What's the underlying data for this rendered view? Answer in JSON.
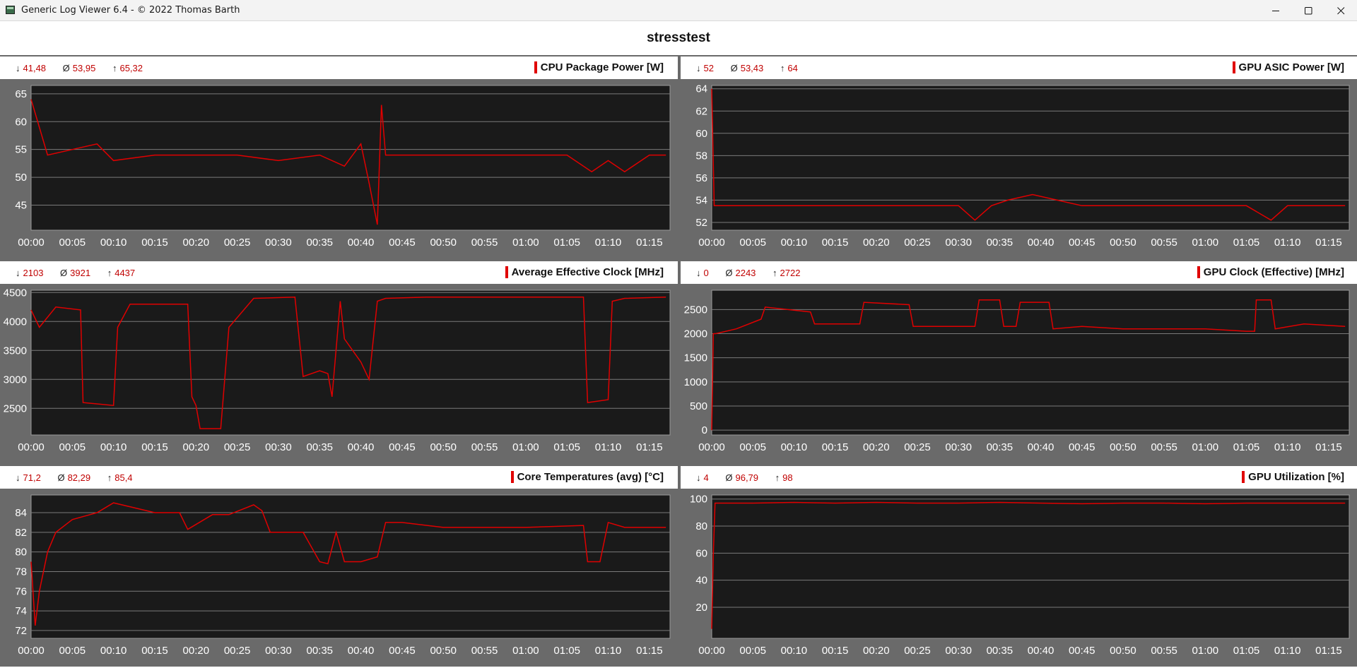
{
  "window": {
    "title": "Generic Log Viewer 6.4 - © 2022 Thomas Barth",
    "minimize_icon": "minimize-icon",
    "maximize_icon": "maximize-icon",
    "close_icon": "close-icon"
  },
  "header": {
    "title": "stresstest"
  },
  "colors": {
    "series": "#e00000",
    "plot_bg": "#1a1a1a",
    "frame": "#6a6a6a",
    "grid": "#7a7a7a",
    "stats": "#c00000"
  },
  "glyphs": {
    "min": "↓",
    "avg": "Ø",
    "max": "↑"
  },
  "panels": [
    {
      "title": "CPU Package Power [W]",
      "stats": {
        "min": "41,48",
        "avg": "53,95",
        "max": "65,32"
      }
    },
    {
      "title": "GPU ASIC Power [W]",
      "stats": {
        "min": "52",
        "avg": "53,43",
        "max": "64"
      }
    },
    {
      "title": "Average Effective Clock [MHz]",
      "stats": {
        "min": "2103",
        "avg": "3921",
        "max": "4437"
      }
    },
    {
      "title": "GPU Clock (Effective) [MHz]",
      "stats": {
        "min": "0",
        "avg": "2243",
        "max": "2722"
      }
    },
    {
      "title": "Core Temperatures (avg) [°C]",
      "stats": {
        "min": "71,2",
        "avg": "82,29",
        "max": "85,4"
      }
    },
    {
      "title": "GPU Utilization [%]",
      "stats": {
        "min": "4",
        "avg": "96,79",
        "max": "98"
      }
    }
  ],
  "chart_data": [
    {
      "type": "line",
      "title": "CPU Package Power [W]",
      "x_ticks": [
        "00:00",
        "00:05",
        "00:10",
        "00:15",
        "00:20",
        "00:25",
        "00:30",
        "00:35",
        "00:40",
        "00:45",
        "00:50",
        "00:55",
        "01:00",
        "01:05",
        "01:10",
        "01:15"
      ],
      "x_minutes": [
        0,
        2,
        5,
        8,
        10,
        15,
        20,
        25,
        30,
        35,
        38,
        40,
        41,
        42,
        42.5,
        43,
        45,
        50,
        55,
        60,
        65,
        68,
        70,
        72,
        75,
        77
      ],
      "ylim": [
        40.5,
        66.5
      ],
      "y_ticks": [
        45,
        50,
        55,
        60,
        65
      ],
      "series": [
        {
          "values": [
            64,
            54,
            55,
            56,
            53,
            54,
            54,
            54,
            53,
            54,
            52,
            56,
            49,
            41.5,
            63,
            54,
            54,
            54,
            54,
            54,
            54,
            51,
            53,
            51,
            54,
            54
          ]
        }
      ]
    },
    {
      "type": "line",
      "title": "GPU ASIC Power [W]",
      "x_ticks": [
        "00:00",
        "00:05",
        "00:10",
        "00:15",
        "00:20",
        "00:25",
        "00:30",
        "00:35",
        "00:40",
        "00:45",
        "00:50",
        "00:55",
        "01:00",
        "01:05",
        "01:10",
        "01:15"
      ],
      "x_minutes": [
        0,
        0.3,
        1,
        10,
        20,
        30,
        32,
        34,
        36,
        39,
        42,
        45,
        50,
        55,
        60,
        65,
        68,
        70,
        72,
        77
      ],
      "ylim": [
        51.3,
        64.3
      ],
      "y_ticks": [
        52,
        54,
        56,
        58,
        60,
        62,
        64
      ],
      "series": [
        {
          "values": [
            64,
            53.5,
            53.5,
            53.5,
            53.5,
            53.5,
            52.2,
            53.5,
            54,
            54.5,
            54,
            53.5,
            53.5,
            53.5,
            53.5,
            53.5,
            52.2,
            53.5,
            53.5,
            53.5
          ]
        }
      ]
    },
    {
      "type": "line",
      "title": "Average Effective Clock [MHz]",
      "x_ticks": [
        "00:00",
        "00:05",
        "00:10",
        "00:15",
        "00:20",
        "00:25",
        "00:30",
        "00:35",
        "00:40",
        "00:45",
        "00:50",
        "00:55",
        "01:00",
        "01:05",
        "01:10",
        "01:15"
      ],
      "x_minutes": [
        0,
        1,
        3,
        6,
        6.3,
        10,
        10.5,
        12,
        19,
        19.5,
        20,
        20.5,
        23,
        24,
        27,
        32,
        33,
        35,
        36,
        36.5,
        37.5,
        38,
        40,
        41,
        42,
        43,
        48,
        55,
        60,
        67,
        67.5,
        70,
        70.5,
        72,
        77
      ],
      "ylim": [
        2040,
        4540
      ],
      "y_ticks": [
        2500,
        3000,
        3500,
        4000,
        4500
      ],
      "series": [
        {
          "values": [
            4200,
            3900,
            4250,
            4200,
            2600,
            2550,
            3900,
            4300,
            4300,
            2700,
            2550,
            2150,
            2150,
            3900,
            4400,
            4420,
            3050,
            3150,
            3100,
            2700,
            4350,
            3700,
            3300,
            3000,
            4350,
            4400,
            4420,
            4420,
            4420,
            4420,
            2600,
            2650,
            4350,
            4400,
            4420
          ]
        }
      ]
    },
    {
      "type": "line",
      "title": "GPU Clock (Effective) [MHz]",
      "x_ticks": [
        "00:00",
        "00:05",
        "00:10",
        "00:15",
        "00:20",
        "00:25",
        "00:30",
        "00:35",
        "00:40",
        "00:45",
        "00:50",
        "00:55",
        "01:00",
        "01:05",
        "01:10",
        "01:15"
      ],
      "x_minutes": [
        0,
        0.2,
        0.5,
        3,
        6,
        6.5,
        12,
        12.5,
        18,
        18.5,
        24,
        24.5,
        32,
        32.5,
        35,
        35.5,
        37,
        37.5,
        41,
        41.5,
        45,
        50,
        55,
        60,
        65,
        66,
        66.2,
        68,
        68.5,
        72,
        77
      ],
      "ylim": [
        -100,
        2900
      ],
      "y_ticks": [
        0,
        500,
        1000,
        1500,
        2000,
        2500
      ],
      "series": [
        {
          "values": [
            0,
            2000,
            2000,
            2100,
            2300,
            2550,
            2450,
            2200,
            2200,
            2650,
            2600,
            2150,
            2150,
            2700,
            2700,
            2150,
            2150,
            2650,
            2650,
            2100,
            2150,
            2100,
            2100,
            2100,
            2050,
            2050,
            2700,
            2700,
            2100,
            2200,
            2150
          ]
        }
      ]
    },
    {
      "type": "line",
      "title": "Core Temperatures (avg) [°C]",
      "x_ticks": [
        "00:00",
        "00:05",
        "00:10",
        "00:15",
        "00:20",
        "00:25",
        "00:30",
        "00:35",
        "00:40",
        "00:45",
        "00:50",
        "00:55",
        "01:00",
        "01:05",
        "01:10",
        "01:15"
      ],
      "x_minutes": [
        0,
        0.5,
        1,
        2,
        3,
        5,
        8,
        10,
        15,
        18,
        19,
        22,
        24,
        27,
        28,
        29,
        32,
        33,
        35,
        36,
        37,
        38,
        40,
        42,
        43,
        45,
        50,
        55,
        60,
        67,
        67.5,
        69,
        70,
        72,
        77
      ],
      "ylim": [
        71.2,
        85.8
      ],
      "y_ticks": [
        72,
        74,
        76,
        78,
        80,
        82,
        84
      ],
      "series": [
        {
          "values": [
            79,
            72.5,
            76,
            80,
            82,
            83.3,
            84,
            85,
            84,
            84,
            82.3,
            83.8,
            83.8,
            84.8,
            84.2,
            82,
            82,
            82,
            79,
            78.8,
            82,
            79,
            79,
            79.5,
            83,
            83,
            82.5,
            82.5,
            82.5,
            82.7,
            79,
            79,
            83,
            82.5,
            82.5
          ]
        }
      ]
    },
    {
      "type": "line",
      "title": "GPU Utilization [%]",
      "x_ticks": [
        "00:00",
        "00:05",
        "00:10",
        "00:15",
        "00:20",
        "00:25",
        "00:30",
        "00:35",
        "00:40",
        "00:45",
        "00:50",
        "00:55",
        "01:00",
        "01:05",
        "01:10",
        "01:15"
      ],
      "x_minutes": [
        0,
        0.2,
        0.4,
        5,
        10,
        15,
        20,
        25,
        30,
        35,
        40,
        45,
        50,
        55,
        60,
        65,
        70,
        75,
        77
      ],
      "ylim": [
        -3,
        103
      ],
      "y_ticks": [
        20,
        40,
        60,
        80,
        100
      ],
      "series": [
        {
          "values": [
            4,
            60,
            97,
            97,
            97.5,
            97,
            97.5,
            97,
            97,
            97.5,
            97,
            96.5,
            97,
            97,
            96.5,
            97,
            97,
            97,
            97
          ]
        }
      ]
    }
  ]
}
